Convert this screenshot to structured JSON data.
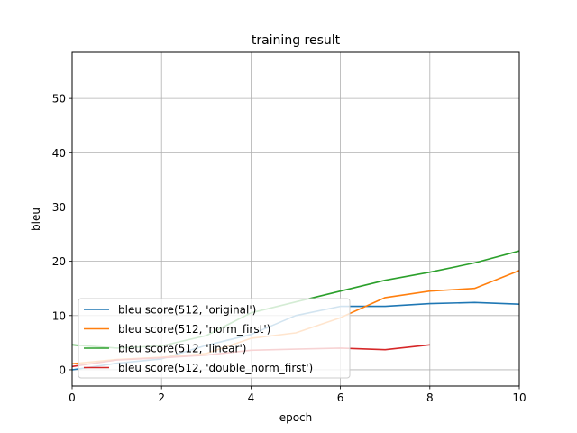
{
  "chart_data": {
    "type": "line",
    "title": "training result",
    "xlabel": "epoch",
    "ylabel": "bleu",
    "xlim": [
      0,
      10
    ],
    "ylim": [
      -3,
      58.5
    ],
    "xticks": [
      0,
      2,
      4,
      6,
      8,
      10
    ],
    "yticks": [
      0,
      10,
      20,
      30,
      40,
      50
    ],
    "grid": true,
    "legend_position": "lower-left",
    "series": [
      {
        "name": "bleu score(512, 'original')",
        "color": "#1f77b4",
        "x": [
          0,
          1,
          2,
          3,
          4,
          5,
          6,
          7,
          8,
          9,
          10
        ],
        "y": [
          0.0,
          1.2,
          2.0,
          4.5,
          6.5,
          10.0,
          11.7,
          11.7,
          12.2,
          12.4,
          12.1
        ]
      },
      {
        "name": "bleu score(512, 'norm_first')",
        "color": "#ff7f0e",
        "x": [
          0,
          1,
          2,
          3,
          4,
          5,
          6,
          7,
          8,
          9,
          10
        ],
        "y": [
          1.1,
          1.9,
          2.3,
          3.0,
          5.8,
          6.8,
          9.6,
          13.3,
          14.5,
          15.0,
          18.3
        ]
      },
      {
        "name": "bleu score(512, 'linear')",
        "color": "#2ca02c",
        "x": [
          0,
          1,
          2,
          3,
          4,
          5,
          6,
          7,
          8,
          9,
          10
        ],
        "y": [
          4.6,
          4.0,
          4.4,
          6.3,
          10.5,
          12.5,
          14.5,
          16.5,
          18.0,
          19.7,
          21.9
        ]
      },
      {
        "name": "bleu score(512, 'double_norm_first')",
        "color": "#d62728",
        "x": [
          0,
          1,
          2,
          3,
          4,
          5,
          6,
          7,
          8
        ],
        "y": [
          0.6,
          1.8,
          2.2,
          2.7,
          3.6,
          3.8,
          4.0,
          3.7,
          4.6
        ]
      }
    ]
  }
}
